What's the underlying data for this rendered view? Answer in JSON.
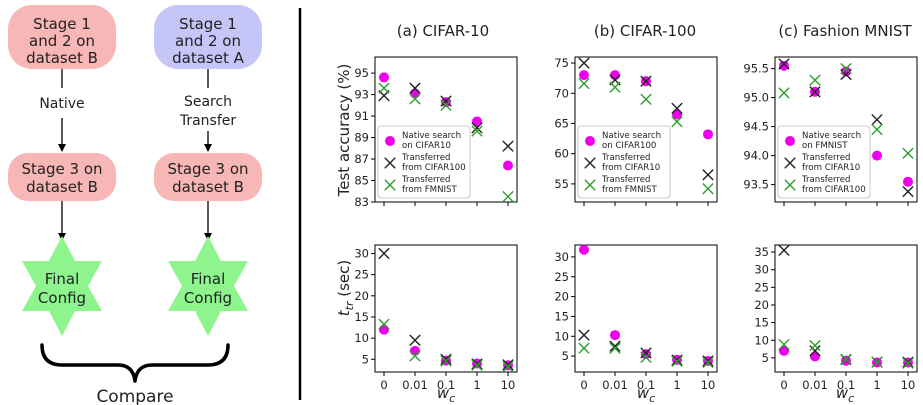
{
  "flow": {
    "left_stage12": [
      "Stage 1",
      "and 2 on",
      "dataset B"
    ],
    "right_stage12": [
      "Stage 1",
      "and 2 on",
      "dataset A"
    ],
    "left_edge_label": [
      "Native"
    ],
    "right_edge_label": [
      "Search",
      "Transfer"
    ],
    "stage3": [
      "Stage 3 on",
      "dataset B"
    ],
    "final": [
      "Final",
      "Config"
    ],
    "compare": "Compare",
    "colors": {
      "pink_box": "#f7b7b7",
      "blue_box": "#c5c5f7",
      "star": "#8ef58e"
    }
  },
  "chart_data": [
    {
      "type": "scatter",
      "title": "(a) CIFAR-10",
      "ylabel": "Test accuracy (%)",
      "xlabel": "w_c",
      "x": [
        "0",
        "0.01",
        "0.1",
        "1",
        "10"
      ],
      "ylim": [
        83,
        96.5
      ],
      "yticks": [
        83,
        85,
        87,
        89,
        91,
        93,
        95
      ],
      "legend": {
        "placement": "lower-left",
        "entries": [
          "Native search on CIFAR10",
          "Transferred from CIFAR100",
          "Transferred from FMNIST"
        ]
      },
      "series": [
        {
          "name": "Native search on CIFAR10",
          "marker": "circle",
          "color": "#ee00ee",
          "values": [
            94.6,
            93.1,
            92.3,
            90.5,
            86.4
          ]
        },
        {
          "name": "Transferred from CIFAR100",
          "marker": "x",
          "color": "#222222",
          "values": [
            92.9,
            93.6,
            92.4,
            89.9,
            88.2
          ]
        },
        {
          "name": "Transferred from FMNIST",
          "marker": "x",
          "color": "#2ca02c",
          "values": [
            93.6,
            92.6,
            92.0,
            89.6,
            83.5
          ]
        }
      ]
    },
    {
      "type": "scatter",
      "title": "(b) CIFAR-100",
      "ylabel": "",
      "xlabel": "w_c",
      "x": [
        "0",
        "0.01",
        "0.1",
        "1",
        "10"
      ],
      "ylim": [
        52,
        76
      ],
      "yticks": [
        55,
        60,
        65,
        70,
        75
      ],
      "legend": {
        "placement": "lower-left",
        "entries": [
          "Native search on CIFAR100",
          "Transferred from CIFAR10",
          "Transferred from FMNIST"
        ]
      },
      "series": [
        {
          "name": "Native search on CIFAR100",
          "marker": "circle",
          "color": "#ee00ee",
          "values": [
            73.0,
            73.0,
            72.0,
            66.5,
            63.2
          ]
        },
        {
          "name": "Transferred from CIFAR10",
          "marker": "x",
          "color": "#222222",
          "values": [
            75.0,
            72.2,
            72.0,
            67.5,
            56.5
          ]
        },
        {
          "name": "Transferred from FMNIST",
          "marker": "x",
          "color": "#2ca02c",
          "values": [
            71.6,
            71.0,
            69.0,
            65.3,
            54.2
          ]
        }
      ]
    },
    {
      "type": "scatter",
      "title": "(c) Fashion MNIST",
      "ylabel": "",
      "xlabel": "w_c",
      "x": [
        "0",
        "0.01",
        "0.1",
        "1",
        "10"
      ],
      "ylim": [
        93.2,
        95.7
      ],
      "yticks": [
        93.5,
        94.0,
        94.5,
        95.0,
        95.5
      ],
      "legend": {
        "placement": "lower-left",
        "entries": [
          "Native search on FMNIST",
          "Transferred from CIFAR10",
          "Transferred from CIFAR100"
        ]
      },
      "series": [
        {
          "name": "Native search on FMNIST",
          "marker": "circle",
          "color": "#ee00ee",
          "values": [
            95.55,
            95.1,
            95.45,
            94.0,
            93.55
          ]
        },
        {
          "name": "Transferred from CIFAR10",
          "marker": "x",
          "color": "#222222",
          "values": [
            95.58,
            95.1,
            95.4,
            94.62,
            93.38
          ]
        },
        {
          "name": "Transferred from CIFAR100",
          "marker": "x",
          "color": "#2ca02c",
          "values": [
            95.08,
            95.3,
            95.5,
            94.45,
            94.04
          ]
        }
      ]
    },
    {
      "type": "scatter",
      "title": "",
      "ylabel": "t_tr (sec)",
      "xlabel": "w_c",
      "x": [
        "0",
        "0.01",
        "0.1",
        "1",
        "10"
      ],
      "ylim": [
        2,
        32
      ],
      "yticks": [
        5,
        10,
        15,
        20,
        25,
        30
      ],
      "series": [
        {
          "name": "Native search on CIFAR10",
          "marker": "circle",
          "color": "#ee00ee",
          "values": [
            12.0,
            7.0,
            4.7,
            4.0,
            3.6
          ]
        },
        {
          "name": "Transferred from CIFAR100",
          "marker": "x",
          "color": "#222222",
          "values": [
            30.0,
            9.5,
            5.0,
            3.9,
            3.7
          ]
        },
        {
          "name": "Transferred from FMNIST",
          "marker": "x",
          "color": "#2ca02c",
          "values": [
            13.3,
            5.8,
            4.6,
            3.6,
            3.3
          ]
        }
      ]
    },
    {
      "type": "scatter",
      "title": "",
      "ylabel": "",
      "xlabel": "w_c",
      "x": [
        "0",
        "0.01",
        "0.1",
        "1",
        "10"
      ],
      "ylim": [
        1,
        33
      ],
      "yticks": [
        5,
        10,
        15,
        20,
        25,
        30
      ],
      "series": [
        {
          "name": "Native search on CIFAR100",
          "marker": "circle",
          "color": "#ee00ee",
          "values": [
            31.8,
            10.3,
            5.5,
            4.1,
            3.8
          ]
        },
        {
          "name": "Transferred from CIFAR10",
          "marker": "x",
          "color": "#222222",
          "values": [
            10.3,
            7.5,
            5.8,
            4.0,
            3.8
          ]
        },
        {
          "name": "Transferred from FMNIST",
          "marker": "x",
          "color": "#2ca02c",
          "values": [
            7.0,
            7.0,
            4.7,
            3.7,
            3.4
          ]
        }
      ]
    },
    {
      "type": "scatter",
      "title": "",
      "ylabel": "",
      "xlabel": "w_c",
      "x": [
        "0",
        "0.01",
        "0.1",
        "1",
        "10"
      ],
      "ylim": [
        1,
        37
      ],
      "yticks": [
        5,
        10,
        15,
        20,
        25,
        30,
        35
      ],
      "series": [
        {
          "name": "Native search on FMNIST",
          "marker": "circle",
          "color": "#ee00ee",
          "values": [
            7.0,
            5.4,
            4.2,
            3.7,
            3.7
          ]
        },
        {
          "name": "Transferred from CIFAR10",
          "marker": "x",
          "color": "#222222",
          "values": [
            35.5,
            7.0,
            4.5,
            3.8,
            3.8
          ]
        },
        {
          "name": "Transferred from CIFAR100",
          "marker": "x",
          "color": "#2ca02c",
          "values": [
            8.8,
            8.5,
            4.6,
            3.8,
            3.5
          ]
        }
      ]
    }
  ]
}
